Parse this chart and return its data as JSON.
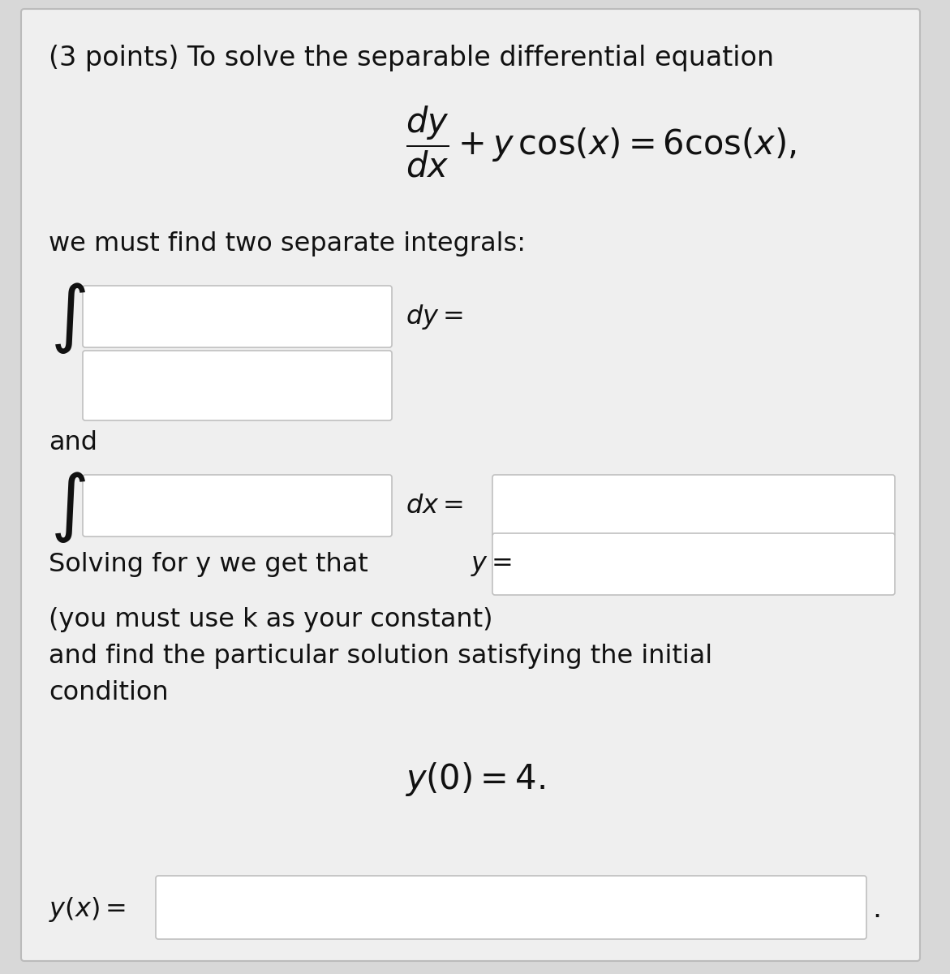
{
  "bg_color": "#d8d8d8",
  "panel_color": "#efefef",
  "box_color": "#ffffff",
  "box_edge_color": "#c0c0c0",
  "text_color": "#111111",
  "title_text": "(3 points) To solve the separable differential equation",
  "equation": "$\\dfrac{dy}{dx} + y\\,\\cos(x) = 6\\cos(x),$",
  "line2": "we must find two separate integrals:",
  "integral_sign": "$\\int$",
  "dy_label": "$dy =$",
  "dx_label": "$dx =$",
  "solving_prefix": "Solving for y we get that ",
  "solving_y": "$y =$",
  "constant_note": "(you must use k as your constant)",
  "particular_note": "and find the particular solution satisfying the initial",
  "condition_word": "condition",
  "initial_cond": "$y(0) = 4.$",
  "yx_prefix": "$y(x) =$",
  "font_size_title": 24,
  "font_size_eq": 30,
  "font_size_body": 23,
  "font_size_integral": 46
}
